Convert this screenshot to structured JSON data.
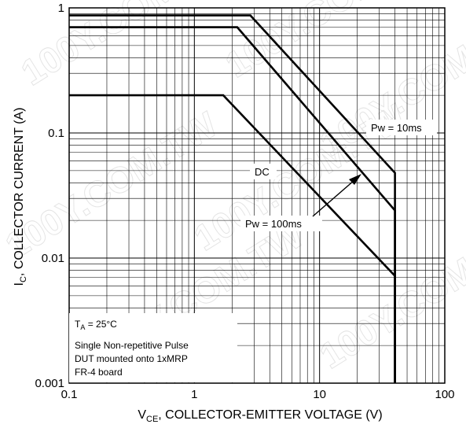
{
  "chart_data": {
    "type": "line",
    "title": "",
    "xlabel": {
      "main": "V",
      "sub": "CE",
      "rest": ", COLLECTOR-EMITTER VOLTAGE (V)"
    },
    "ylabel": {
      "main": "I",
      "sub": "C",
      "rest": ", COLLECTOR CURRENT (A)"
    },
    "x_scale": "log",
    "y_scale": "log",
    "xlim": [
      0.1,
      100
    ],
    "ylim": [
      0.001,
      1
    ],
    "grid": true,
    "x_ticks": [
      {
        "value": 0.1,
        "label": "0.1"
      },
      {
        "value": 1,
        "label": "1"
      },
      {
        "value": 10,
        "label": "10"
      },
      {
        "value": 100,
        "label": "100"
      }
    ],
    "y_ticks": [
      {
        "value": 0.001,
        "label": "0.001"
      },
      {
        "value": 0.01,
        "label": "0.01"
      },
      {
        "value": 0.1,
        "label": "0.1"
      },
      {
        "value": 1,
        "label": "1"
      }
    ],
    "series": [
      {
        "name": "Pw = 10ms",
        "points": [
          [
            0.1,
            0.87
          ],
          [
            2.8,
            0.87
          ],
          [
            40,
            0.048
          ],
          [
            40,
            0.001
          ]
        ]
      },
      {
        "name": "Pw = 100ms",
        "points": [
          [
            0.1,
            0.7
          ],
          [
            2.2,
            0.7
          ],
          [
            40,
            0.024
          ],
          [
            40,
            0.001
          ]
        ]
      },
      {
        "name": "DC",
        "points": [
          [
            0.1,
            0.2
          ],
          [
            1.7,
            0.2
          ],
          [
            40,
            0.0072
          ],
          [
            40,
            0.001
          ]
        ]
      }
    ],
    "annotations": {
      "pw10": "Pw = 10ms",
      "dc": "DC",
      "pw100": "Pw = 100ms",
      "ta_main": "T",
      "ta_sub": "A",
      "ta_rest": " = 25°C",
      "note_line1": "Single Non-repetitive Pulse",
      "note_line2": "DUT mounted onto 1xMRP",
      "note_line3": "FR-4 board"
    },
    "watermark": "100Y.COM.TW"
  }
}
